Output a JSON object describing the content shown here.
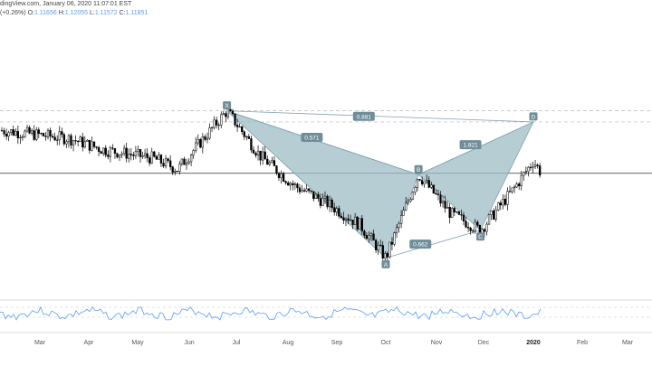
{
  "header": {
    "line1": "dingView.com, January 06, 2020 11:07:01 EST",
    "change": "(+0.26%)",
    "o_label": "O:",
    "o_value": "1.11656",
    "h_label": "H:",
    "h_value": "1.12055",
    "l_label": "L:",
    "l_value": "1.11572",
    "c_label": "C:",
    "c_value": "1.11851"
  },
  "chart_data": {
    "type": "candlestick",
    "title": "",
    "x_axis_labels": [
      "Mar",
      "Apr",
      "May",
      "Jun",
      "Jul",
      "Aug",
      "Sep",
      "Oct",
      "Nov",
      "Dec",
      "2020",
      "Feb",
      "Mar"
    ],
    "pattern": {
      "points": [
        {
          "label": "X",
          "date": "2019-06-25",
          "value": 1.141
        },
        {
          "label": "A",
          "date": "2019-10-01",
          "value": 1.088
        },
        {
          "label": "B",
          "date": "2019-10-21",
          "value": 1.118
        },
        {
          "label": "C",
          "date": "2019-11-29",
          "value": 1.098
        },
        {
          "label": "D",
          "date": "2020-01-01",
          "value": 1.137
        }
      ],
      "ratios": [
        {
          "label": "0.571",
          "between": "X-B"
        },
        {
          "label": "0.662",
          "between": "A-C"
        },
        {
          "label": "1.821",
          "between": "B-D"
        },
        {
          "label": "0.881",
          "between": "X-D"
        }
      ]
    },
    "horizontal_lines": [
      {
        "style": "dashed",
        "value": 1.141
      },
      {
        "style": "dashed",
        "value": 1.137
      },
      {
        "style": "solid",
        "value": 1.1185
      }
    ],
    "colors": {
      "candle": "#000000",
      "pattern_fill": "#9fbcc6",
      "pattern_edge": "#7fa3b0",
      "label_bg": "#6f8e99",
      "oscillator": "#5b9cf6"
    }
  }
}
